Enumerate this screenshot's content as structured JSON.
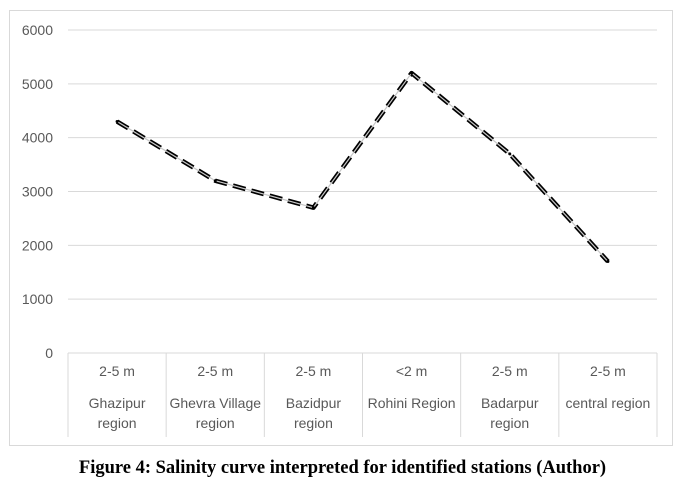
{
  "caption": "Figure 4: Salinity curve interpreted for identified stations (Author)",
  "chart_data": {
    "type": "line",
    "title": "",
    "xlabel": "",
    "ylabel": "",
    "ylim": [
      0,
      6000
    ],
    "yticks": [
      0,
      1000,
      2000,
      3000,
      4000,
      5000,
      6000
    ],
    "grid": true,
    "categories": [
      [
        "2-5 m",
        "Ghazipur",
        "region"
      ],
      [
        "2-5 m",
        "Ghevra Village",
        "region"
      ],
      [
        "2-5 m",
        "Bazidpur",
        "region"
      ],
      [
        "<2 m",
        "Rohini Region"
      ],
      [
        "2-5 m",
        "Badarpur",
        "region"
      ],
      [
        "2-5 m",
        "central region"
      ]
    ],
    "series": [
      {
        "values": [
          4300,
          3200,
          2700,
          5200,
          3700,
          1700
        ],
        "color": "#000000",
        "style": "dashed"
      }
    ]
  }
}
